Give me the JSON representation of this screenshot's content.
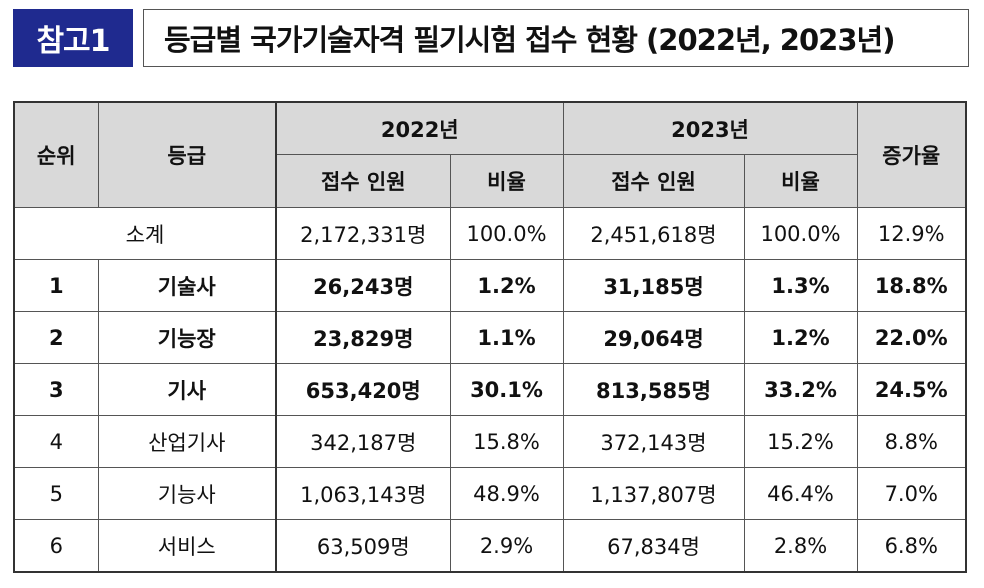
{
  "header": {
    "tag": "참고1",
    "title": "등급별 국가기술자격 필기시험 접수 현황 (2022년, 2023년)"
  },
  "table": {
    "columns": {
      "rank": "순위",
      "grade": "등급",
      "year1": "2022년",
      "year2": "2023年",
      "applicants": "접수 인원",
      "ratio": "비율",
      "growth": "증가율"
    },
    "subtotal": {
      "label": "소계",
      "applicants_2022": "2,172,331명",
      "ratio_2022": "100.0%",
      "applicants_2023": "2,451,618명",
      "ratio_2023": "100.0%",
      "growth": "12.9%"
    },
    "rows": [
      {
        "rank": "1",
        "grade": "기술사",
        "applicants_2022": "26,243명",
        "ratio_2022": "1.2%",
        "applicants_2023": "31,185명",
        "ratio_2023": "1.3%",
        "growth": "18.8%"
      },
      {
        "rank": "2",
        "grade": "기능장",
        "applicants_2022": "23,829명",
        "ratio_2022": "1.1%",
        "applicants_2023": "29,064명",
        "ratio_2023": "1.2%",
        "growth": "22.0%"
      },
      {
        "rank": "3",
        "grade": "기사",
        "applicants_2022": "653,420명",
        "ratio_2022": "30.1%",
        "applicants_2023": "813,585명",
        "ratio_2023": "33.2%",
        "growth": "24.5%"
      },
      {
        "rank": "4",
        "grade": "산업기사",
        "applicants_2022": "342,187명",
        "ratio_2022": "15.8%",
        "applicants_2023": "372,143명",
        "ratio_2023": "15.2%",
        "growth": "8.8%"
      },
      {
        "rank": "5",
        "grade": "기능사",
        "applicants_2022": "1,063,143명",
        "ratio_2022": "48.9%",
        "applicants_2023": "1,137,807명",
        "ratio_2023": "46.4%",
        "growth": "7.0%"
      },
      {
        "rank": "6",
        "grade": "서비스",
        "applicants_2022": "63,509명",
        "ratio_2022": "2.9%",
        "applicants_2023": "67,834명",
        "ratio_2023": "2.8%",
        "growth": "6.8%"
      }
    ]
  },
  "colors": {
    "tag_background": "#1f2a8f",
    "header_cell_background": "#d9d9d9"
  }
}
